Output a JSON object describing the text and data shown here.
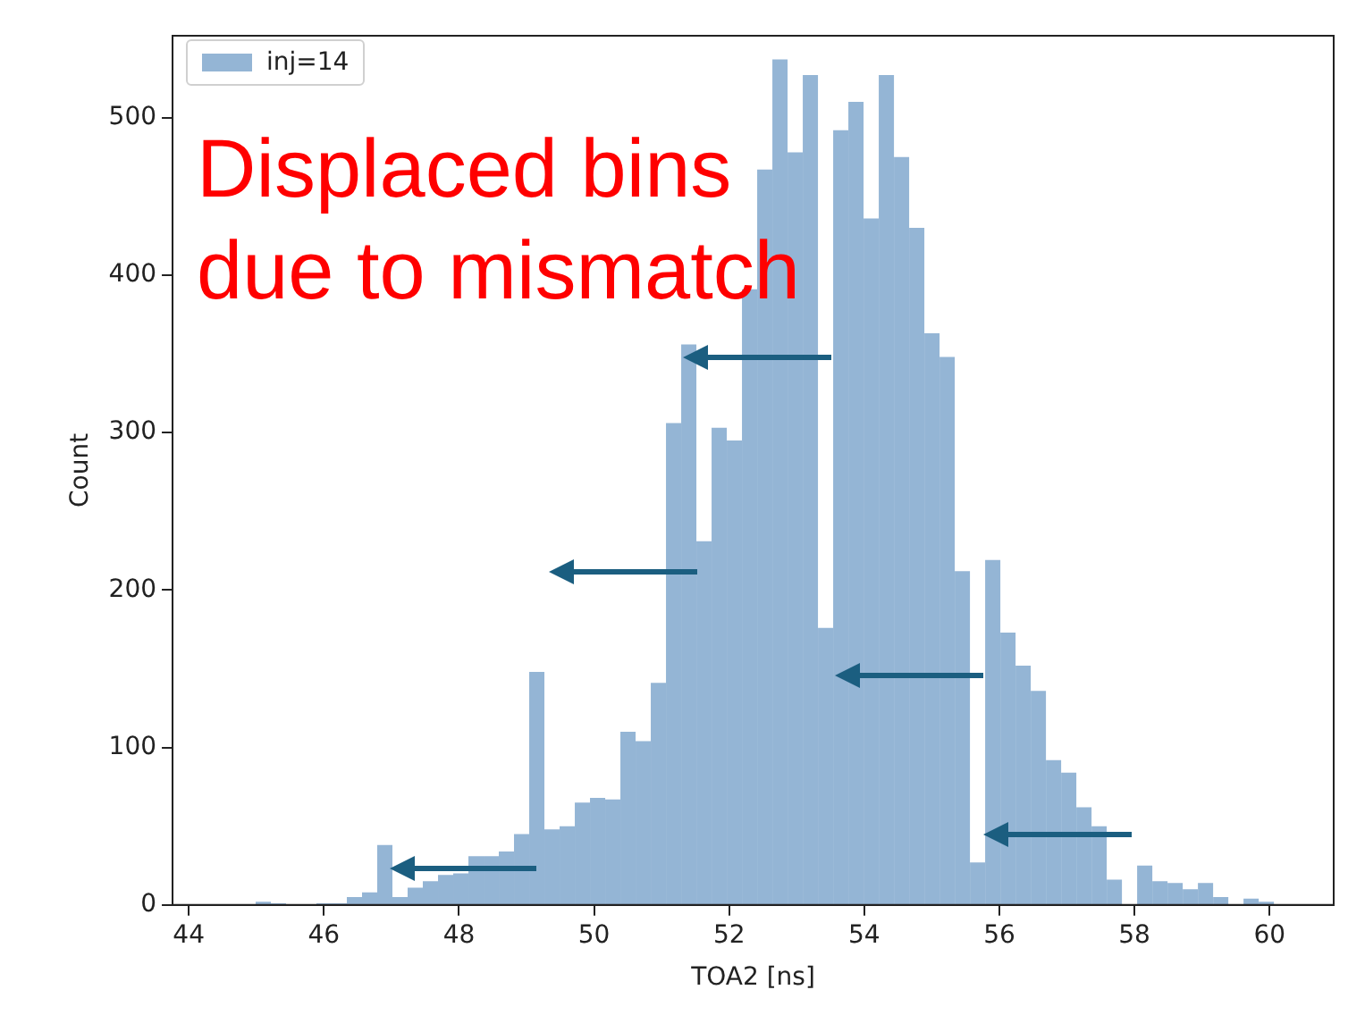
{
  "chart_data": {
    "type": "histogram",
    "xlabel": "TOA2 [ns]",
    "ylabel": "Count",
    "bins": [
      44.54,
      44.765,
      44.99,
      45.215,
      45.44,
      45.665,
      45.89,
      46.115,
      46.34,
      46.565,
      46.79,
      47.015,
      47.24,
      47.465,
      47.69,
      47.915,
      48.14,
      48.365,
      48.59,
      48.815,
      49.04,
      49.265,
      49.49,
      49.715,
      49.94,
      50.165,
      50.39,
      50.615,
      50.84,
      51.065,
      51.29,
      51.515,
      51.74,
      51.965,
      52.19,
      52.415,
      52.64,
      52.865,
      53.09,
      53.315,
      53.54,
      53.765,
      53.99,
      54.215,
      54.44,
      54.665,
      54.89,
      55.115,
      55.34,
      55.565,
      55.79,
      56.015,
      56.24,
      56.465,
      56.69,
      56.915,
      57.14,
      57.365,
      57.59,
      57.815,
      58.04,
      58.265,
      58.49,
      58.715,
      58.94,
      59.165,
      59.39,
      59.615,
      59.84,
      60.065
    ],
    "series": [
      {
        "name": "inj=14",
        "color": "#94b5d5",
        "values": [
          0,
          0,
          2,
          1,
          0,
          0,
          1,
          1,
          5,
          8,
          38,
          5,
          11,
          15,
          19,
          20,
          31,
          31,
          34,
          45,
          148,
          48,
          50,
          65,
          68,
          67,
          110,
          104,
          141,
          306,
          356,
          231,
          303,
          295,
          391,
          467,
          537,
          478,
          527,
          176,
          492,
          510,
          436,
          527,
          475,
          430,
          363,
          348,
          212,
          27,
          219,
          173,
          152,
          136,
          92,
          84,
          62,
          50,
          16,
          0,
          25,
          15,
          14,
          10,
          14,
          5,
          0,
          4,
          2
        ]
      }
    ],
    "xlim": [
      43.76,
      60.95
    ],
    "ylim": [
      0,
      552
    ],
    "xticks": [
      44,
      46,
      48,
      50,
      52,
      54,
      56,
      58,
      60
    ],
    "yticks": [
      0,
      100,
      200,
      300,
      400,
      500
    ],
    "grid": false,
    "legend": "top left",
    "annotations": [
      "Displaced bins due to mismatch"
    ]
  }
}
